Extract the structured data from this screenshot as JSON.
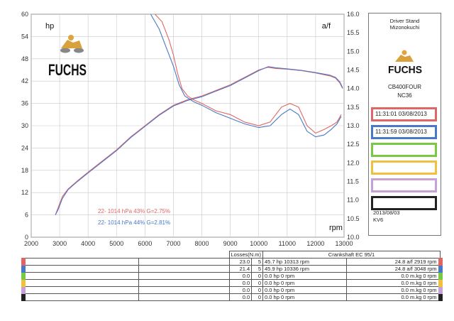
{
  "chart_data": {
    "type": "line",
    "x_axis": {
      "label": "rpm",
      "range": [
        2000,
        13000
      ],
      "ticks": [
        2000,
        3000,
        4000,
        5000,
        6000,
        7000,
        8000,
        9000,
        10000,
        11000,
        12000,
        13000
      ]
    },
    "y_left": {
      "label": "hp",
      "range": [
        0,
        60
      ],
      "ticks": [
        0,
        6,
        12,
        18,
        24,
        30,
        36,
        42,
        48,
        54,
        60
      ]
    },
    "y_right": {
      "label": "a/f",
      "range": [
        10.0,
        16.0
      ],
      "ticks": [
        "10.0",
        "10.5",
        "11.0",
        "11.5",
        "12.0",
        "12.5",
        "13.0",
        "13.5",
        "14.0",
        "14.5",
        "15.0",
        "15.5",
        "16.0"
      ]
    },
    "grid": true,
    "series": [
      {
        "name": "Run 1 power",
        "axis": "left",
        "color": "#e06666",
        "x": [
          2850,
          2950,
          3100,
          3300,
          3600,
          4000,
          4500,
          5000,
          5500,
          6000,
          6500,
          7000,
          7500,
          8000,
          8500,
          9000,
          9500,
          10000,
          10313,
          10600,
          11000,
          11500,
          12000,
          12500,
          12700,
          12850,
          12950
        ],
        "y": [
          6,
          8,
          11,
          13,
          15,
          17.5,
          20.5,
          23.5,
          27,
          30,
          33,
          35.5,
          37,
          38,
          39.5,
          41,
          43,
          45,
          45.7,
          45.4,
          45.2,
          44.8,
          44.2,
          43.4,
          42.8,
          41.5,
          40
        ]
      },
      {
        "name": "Run 2 power",
        "axis": "left",
        "color": "#4a78c8",
        "x": [
          2850,
          2950,
          3100,
          3300,
          3600,
          4000,
          4500,
          5000,
          5500,
          6000,
          6500,
          7000,
          7500,
          8000,
          8500,
          9000,
          9500,
          10000,
          10336,
          10600,
          11000,
          11500,
          12000,
          12500,
          12700,
          12850,
          12950
        ],
        "y": [
          6,
          7.5,
          10.5,
          12.8,
          14.8,
          17.3,
          20.3,
          23.3,
          26.8,
          29.8,
          32.8,
          35.3,
          36.8,
          37.8,
          39.3,
          40.8,
          42.8,
          44.8,
          45.9,
          45.6,
          45.3,
          44.9,
          44.3,
          43.6,
          43.0,
          41.8,
          40.2
        ]
      },
      {
        "name": "Run 1 a/f",
        "axis": "right",
        "color": "#e06666",
        "x": [
          6350,
          6600,
          6850,
          7000,
          7150,
          7300,
          7500,
          7700,
          8000,
          8500,
          9000,
          9500,
          10000,
          10400,
          10800,
          11100,
          11400,
          11700,
          12000,
          12300,
          12550,
          12750,
          12900
        ],
        "y": [
          16.0,
          15.8,
          15.3,
          14.9,
          14.4,
          14.0,
          13.8,
          13.7,
          13.6,
          13.4,
          13.3,
          13.1,
          13.0,
          13.1,
          13.5,
          13.6,
          13.5,
          13.0,
          12.8,
          12.9,
          13.0,
          13.1,
          13.3
        ]
      },
      {
        "name": "Run 2 a/f",
        "axis": "right",
        "color": "#4a78c8",
        "x": [
          6200,
          6500,
          6800,
          7000,
          7200,
          7400,
          7700,
          8000,
          8500,
          9000,
          9500,
          10000,
          10400,
          10800,
          11100,
          11400,
          11700,
          12000,
          12300,
          12550,
          12750,
          12900
        ],
        "y": [
          16.0,
          15.6,
          15.0,
          14.6,
          14.1,
          13.8,
          13.65,
          13.55,
          13.35,
          13.2,
          13.05,
          12.95,
          13.0,
          13.3,
          13.45,
          13.3,
          12.85,
          12.7,
          12.75,
          12.9,
          13.05,
          13.25
        ]
      }
    ]
  },
  "chart_labels": {
    "hp": "hp",
    "af": "a/f",
    "rpm": "rpm",
    "run1_legend": "22-  1014 hPa  43%    G=2.75%",
    "run2_legend": "22-  1014 hPa  44%    G=2.81%"
  },
  "logo_text": "FUCHS",
  "side_panel": {
    "title_line1": "Driver Stand",
    "title_line2": "Mizonokuchi",
    "model": "CB400FOUR",
    "code": "NC36",
    "runs": [
      {
        "label": "11:31:01   03/08/2013",
        "color": "#e06666"
      },
      {
        "label": "11:31:59   03/08/2013",
        "color": "#4a78c8"
      },
      {
        "label": "",
        "color": "#7ac943"
      },
      {
        "label": "",
        "color": "#f0c040"
      },
      {
        "label": "",
        "color": "#c8a0d8"
      },
      {
        "label": "",
        "color": "#222222"
      }
    ],
    "date": "2013/08/03",
    "footer_code": "KV6"
  },
  "table": {
    "losses_header": "Losses(N.m)",
    "crank_header": "Crankshaft EC 95/1",
    "rows": [
      {
        "color": "#e06666",
        "loss": "23.0",
        "n": "5",
        "peak": "45.7 hp 10313 rpm",
        "af": "24.8 a/f 2919 rpm"
      },
      {
        "color": "#4a78c8",
        "loss": "21.4",
        "n": "5",
        "peak": "45.9 hp 10336 rpm",
        "af": "24.8 a/f 3048 rpm"
      },
      {
        "color": "#7ac943",
        "loss": "0.0",
        "n": "0",
        "peak": "0.0 hp 0 rpm",
        "af": "0.0 m.kg 0 rpm"
      },
      {
        "color": "#f0c040",
        "loss": "0.0",
        "n": "0",
        "peak": "0.0 hp 0 rpm",
        "af": "0.0 m.kg 0 rpm"
      },
      {
        "color": "#c8a0d8",
        "loss": "0.0",
        "n": "0",
        "peak": "0.0 hp 0 rpm",
        "af": "0.0 m.kg 0 rpm"
      },
      {
        "color": "#222222",
        "loss": "0.0",
        "n": "0",
        "peak": "0.0 hp 0 rpm",
        "af": "0.0 m.kg 0 rpm"
      }
    ]
  }
}
